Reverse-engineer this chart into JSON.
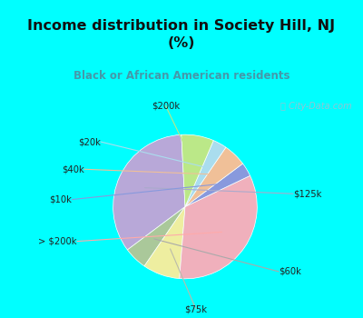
{
  "title": "Income distribution in Society Hill, NJ\n(%)",
  "subtitle": "Black or African American residents",
  "title_color": "#111111",
  "subtitle_color": "#4499aa",
  "bg_top": "#00ffff",
  "bg_chart_color": "#d4eedf",
  "watermark": "City-Data.com",
  "labels": [
    "$125k",
    "$60k",
    "$75k",
    "> $200k",
    "$10k",
    "$40k",
    "$20k",
    "$200k"
  ],
  "values": [
    33,
    5,
    8,
    32,
    3,
    5,
    3,
    7
  ],
  "colors": [
    "#b8a8d8",
    "#aac89a",
    "#eeeea0",
    "#f0b0bc",
    "#8899dd",
    "#f0c098",
    "#aaddee",
    "#bbe888"
  ],
  "startangle": 93,
  "figsize": [
    4.0,
    3.5
  ],
  "dpi": 100
}
